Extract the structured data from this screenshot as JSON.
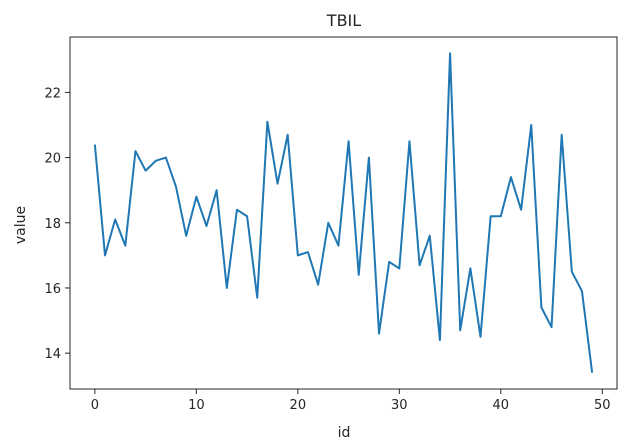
{
  "chart_data": {
    "type": "line",
    "title": "TBIL",
    "xlabel": "id",
    "ylabel": "value",
    "xlim": [
      -2.45,
      51.45
    ],
    "ylim": [
      12.9,
      23.7
    ],
    "xticks": [
      0,
      10,
      20,
      30,
      40,
      50
    ],
    "yticks": [
      14,
      16,
      18,
      20,
      22
    ],
    "grid": false,
    "legend": "none",
    "series": [
      {
        "color": "#1f77b4",
        "x": [
          0,
          1,
          2,
          3,
          4,
          5,
          6,
          7,
          8,
          9,
          10,
          11,
          12,
          13,
          14,
          15,
          16,
          17,
          18,
          19,
          20,
          21,
          22,
          23,
          24,
          25,
          26,
          27,
          28,
          29,
          30,
          31,
          32,
          33,
          34,
          35,
          36,
          37,
          38,
          39,
          40,
          41,
          42,
          43,
          44,
          45,
          46,
          47,
          48,
          49
        ],
        "values": [
          20.4,
          17.0,
          18.1,
          17.3,
          20.2,
          19.6,
          19.9,
          20.0,
          19.1,
          17.6,
          18.8,
          17.9,
          19.0,
          16.0,
          18.4,
          18.2,
          15.7,
          21.1,
          19.2,
          20.7,
          17.0,
          17.1,
          16.1,
          18.0,
          17.3,
          20.5,
          16.4,
          20.0,
          14.6,
          16.8,
          16.6,
          20.5,
          16.7,
          17.6,
          14.4,
          23.2,
          14.7,
          16.6,
          14.5,
          18.2,
          18.2,
          19.4,
          18.4,
          21.0,
          15.4,
          14.8,
          20.7,
          16.5,
          15.9,
          13.4
        ]
      }
    ]
  }
}
